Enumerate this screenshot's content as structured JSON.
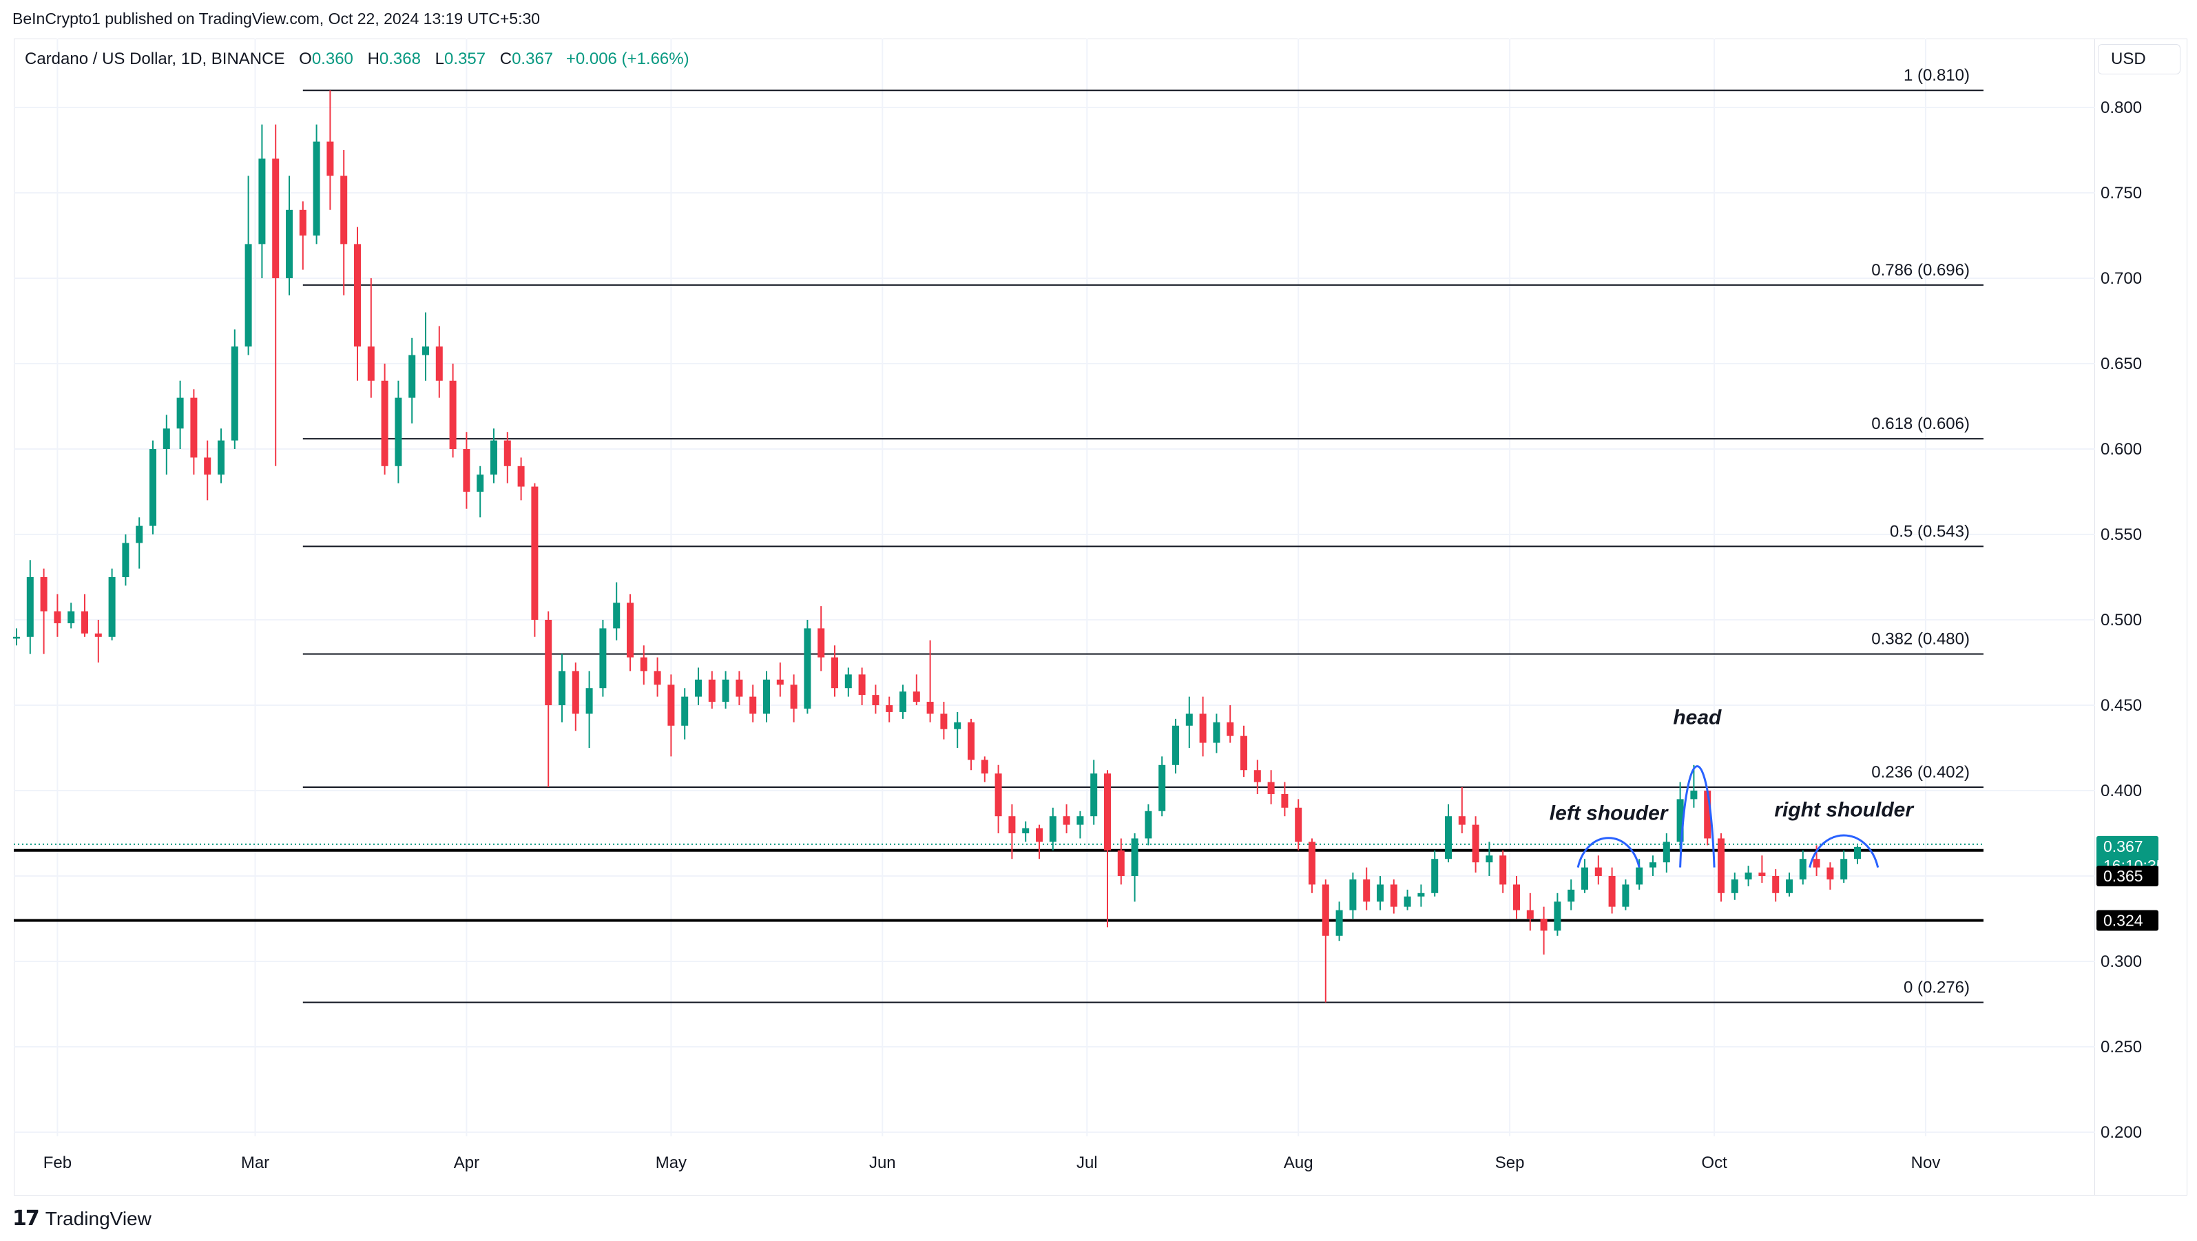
{
  "header": {
    "publish_text": "BeInCrypto1 published on TradingView.com, Oct 22, 2024 13:19 UTC+5:30"
  },
  "legend": {
    "symbol": "Cardano / US Dollar, 1D, BINANCE",
    "o_label": "O",
    "o_value": "0.360",
    "h_label": "H",
    "h_value": "0.368",
    "l_label": "L",
    "l_value": "0.357",
    "c_label": "C",
    "c_value": "0.367",
    "change": "+0.006 (+1.66%)"
  },
  "currency": "USD",
  "footer": {
    "logo": "17",
    "brand": "TradingView"
  },
  "colors": {
    "up": "#089981",
    "down": "#f23645",
    "annotation_curve": "#2962ff",
    "level_line": "#131722"
  },
  "chart_data": {
    "type": "candlestick",
    "title": "Cardano / US Dollar, 1D, BINANCE",
    "x_tick_labels": [
      "Feb",
      "Mar",
      "Apr",
      "May",
      "Jun",
      "Jul",
      "Aug",
      "Sep",
      "Oct",
      "Nov"
    ],
    "x_tick_dates": [
      "2024-02-01",
      "2024-03-01",
      "2024-04-01",
      "2024-05-01",
      "2024-06-01",
      "2024-07-01",
      "2024-08-01",
      "2024-09-01",
      "2024-10-01",
      "2024-11-01"
    ],
    "x_range": [
      "2024-01-26",
      "2024-11-20"
    ],
    "y_ticks": [
      "0.800",
      "0.750",
      "0.700",
      "0.650",
      "0.600",
      "0.550",
      "0.500",
      "0.450",
      "0.400",
      "0.350",
      "0.300",
      "0.250",
      "0.200"
    ],
    "y_range": [
      0.19,
      0.81
    ],
    "grid": true,
    "candles": [
      {
        "d": "2024-01-26",
        "o": 0.489,
        "h": 0.495,
        "l": 0.485,
        "c": 0.49
      },
      {
        "d": "2024-01-28",
        "o": 0.49,
        "h": 0.535,
        "l": 0.48,
        "c": 0.525
      },
      {
        "d": "2024-01-30",
        "o": 0.525,
        "h": 0.53,
        "l": 0.48,
        "c": 0.505
      },
      {
        "d": "2024-02-01",
        "o": 0.505,
        "h": 0.515,
        "l": 0.49,
        "c": 0.498
      },
      {
        "d": "2024-02-03",
        "o": 0.498,
        "h": 0.51,
        "l": 0.495,
        "c": 0.505
      },
      {
        "d": "2024-02-05",
        "o": 0.505,
        "h": 0.515,
        "l": 0.49,
        "c": 0.492
      },
      {
        "d": "2024-02-07",
        "o": 0.492,
        "h": 0.5,
        "l": 0.475,
        "c": 0.49
      },
      {
        "d": "2024-02-09",
        "o": 0.49,
        "h": 0.53,
        "l": 0.488,
        "c": 0.525
      },
      {
        "d": "2024-02-11",
        "o": 0.525,
        "h": 0.55,
        "l": 0.52,
        "c": 0.545
      },
      {
        "d": "2024-02-13",
        "o": 0.545,
        "h": 0.56,
        "l": 0.53,
        "c": 0.555
      },
      {
        "d": "2024-02-15",
        "o": 0.555,
        "h": 0.605,
        "l": 0.55,
        "c": 0.6
      },
      {
        "d": "2024-02-17",
        "o": 0.6,
        "h": 0.62,
        "l": 0.585,
        "c": 0.612
      },
      {
        "d": "2024-02-19",
        "o": 0.612,
        "h": 0.64,
        "l": 0.6,
        "c": 0.63
      },
      {
        "d": "2024-02-21",
        "o": 0.63,
        "h": 0.635,
        "l": 0.585,
        "c": 0.595
      },
      {
        "d": "2024-02-23",
        "o": 0.595,
        "h": 0.605,
        "l": 0.57,
        "c": 0.585
      },
      {
        "d": "2024-02-25",
        "o": 0.585,
        "h": 0.612,
        "l": 0.58,
        "c": 0.605
      },
      {
        "d": "2024-02-27",
        "o": 0.605,
        "h": 0.67,
        "l": 0.6,
        "c": 0.66
      },
      {
        "d": "2024-02-29",
        "o": 0.66,
        "h": 0.76,
        "l": 0.655,
        "c": 0.72
      },
      {
        "d": "2024-03-02",
        "o": 0.72,
        "h": 0.79,
        "l": 0.7,
        "c": 0.77
      },
      {
        "d": "2024-03-04",
        "o": 0.77,
        "h": 0.79,
        "l": 0.59,
        "c": 0.7
      },
      {
        "d": "2024-03-06",
        "o": 0.7,
        "h": 0.76,
        "l": 0.69,
        "c": 0.74
      },
      {
        "d": "2024-03-08",
        "o": 0.74,
        "h": 0.745,
        "l": 0.705,
        "c": 0.725
      },
      {
        "d": "2024-03-10",
        "o": 0.725,
        "h": 0.79,
        "l": 0.72,
        "c": 0.78
      },
      {
        "d": "2024-03-12",
        "o": 0.78,
        "h": 0.81,
        "l": 0.74,
        "c": 0.76
      },
      {
        "d": "2024-03-14",
        "o": 0.76,
        "h": 0.775,
        "l": 0.69,
        "c": 0.72
      },
      {
        "d": "2024-03-16",
        "o": 0.72,
        "h": 0.73,
        "l": 0.64,
        "c": 0.66
      },
      {
        "d": "2024-03-18",
        "o": 0.66,
        "h": 0.7,
        "l": 0.63,
        "c": 0.64
      },
      {
        "d": "2024-03-20",
        "o": 0.64,
        "h": 0.65,
        "l": 0.585,
        "c": 0.59
      },
      {
        "d": "2024-03-22",
        "o": 0.59,
        "h": 0.64,
        "l": 0.58,
        "c": 0.63
      },
      {
        "d": "2024-03-24",
        "o": 0.63,
        "h": 0.665,
        "l": 0.615,
        "c": 0.655
      },
      {
        "d": "2024-03-26",
        "o": 0.655,
        "h": 0.68,
        "l": 0.64,
        "c": 0.66
      },
      {
        "d": "2024-03-28",
        "o": 0.66,
        "h": 0.672,
        "l": 0.63,
        "c": 0.64
      },
      {
        "d": "2024-03-30",
        "o": 0.64,
        "h": 0.65,
        "l": 0.595,
        "c": 0.6
      },
      {
        "d": "2024-04-01",
        "o": 0.6,
        "h": 0.61,
        "l": 0.565,
        "c": 0.575
      },
      {
        "d": "2024-04-03",
        "o": 0.575,
        "h": 0.59,
        "l": 0.56,
        "c": 0.585
      },
      {
        "d": "2024-04-05",
        "o": 0.585,
        "h": 0.612,
        "l": 0.58,
        "c": 0.605
      },
      {
        "d": "2024-04-07",
        "o": 0.605,
        "h": 0.61,
        "l": 0.58,
        "c": 0.59
      },
      {
        "d": "2024-04-09",
        "o": 0.59,
        "h": 0.595,
        "l": 0.57,
        "c": 0.578
      },
      {
        "d": "2024-04-11",
        "o": 0.578,
        "h": 0.58,
        "l": 0.49,
        "c": 0.5
      },
      {
        "d": "2024-04-13",
        "o": 0.5,
        "h": 0.505,
        "l": 0.402,
        "c": 0.45
      },
      {
        "d": "2024-04-15",
        "o": 0.45,
        "h": 0.48,
        "l": 0.44,
        "c": 0.47
      },
      {
        "d": "2024-04-17",
        "o": 0.47,
        "h": 0.475,
        "l": 0.435,
        "c": 0.445
      },
      {
        "d": "2024-04-19",
        "o": 0.445,
        "h": 0.47,
        "l": 0.425,
        "c": 0.46
      },
      {
        "d": "2024-04-21",
        "o": 0.46,
        "h": 0.5,
        "l": 0.455,
        "c": 0.495
      },
      {
        "d": "2024-04-23",
        "o": 0.495,
        "h": 0.522,
        "l": 0.488,
        "c": 0.51
      },
      {
        "d": "2024-04-25",
        "o": 0.51,
        "h": 0.515,
        "l": 0.47,
        "c": 0.478
      },
      {
        "d": "2024-04-27",
        "o": 0.478,
        "h": 0.485,
        "l": 0.462,
        "c": 0.47
      },
      {
        "d": "2024-04-29",
        "o": 0.47,
        "h": 0.478,
        "l": 0.455,
        "c": 0.462
      },
      {
        "d": "2024-05-01",
        "o": 0.462,
        "h": 0.468,
        "l": 0.42,
        "c": 0.438
      },
      {
        "d": "2024-05-03",
        "o": 0.438,
        "h": 0.46,
        "l": 0.43,
        "c": 0.455
      },
      {
        "d": "2024-05-05",
        "o": 0.455,
        "h": 0.472,
        "l": 0.45,
        "c": 0.465
      },
      {
        "d": "2024-05-07",
        "o": 0.465,
        "h": 0.47,
        "l": 0.448,
        "c": 0.452
      },
      {
        "d": "2024-05-09",
        "o": 0.452,
        "h": 0.47,
        "l": 0.448,
        "c": 0.465
      },
      {
        "d": "2024-05-11",
        "o": 0.465,
        "h": 0.47,
        "l": 0.45,
        "c": 0.455
      },
      {
        "d": "2024-05-13",
        "o": 0.455,
        "h": 0.462,
        "l": 0.44,
        "c": 0.445
      },
      {
        "d": "2024-05-15",
        "o": 0.445,
        "h": 0.47,
        "l": 0.44,
        "c": 0.465
      },
      {
        "d": "2024-05-17",
        "o": 0.465,
        "h": 0.475,
        "l": 0.455,
        "c": 0.462
      },
      {
        "d": "2024-05-19",
        "o": 0.462,
        "h": 0.468,
        "l": 0.44,
        "c": 0.448
      },
      {
        "d": "2024-05-21",
        "o": 0.448,
        "h": 0.5,
        "l": 0.445,
        "c": 0.495
      },
      {
        "d": "2024-05-23",
        "o": 0.495,
        "h": 0.508,
        "l": 0.47,
        "c": 0.478
      },
      {
        "d": "2024-05-25",
        "o": 0.478,
        "h": 0.485,
        "l": 0.455,
        "c": 0.46
      },
      {
        "d": "2024-05-27",
        "o": 0.46,
        "h": 0.472,
        "l": 0.455,
        "c": 0.468
      },
      {
        "d": "2024-05-29",
        "o": 0.468,
        "h": 0.472,
        "l": 0.45,
        "c": 0.456
      },
      {
        "d": "2024-05-31",
        "o": 0.456,
        "h": 0.462,
        "l": 0.445,
        "c": 0.45
      },
      {
        "d": "2024-06-02",
        "o": 0.45,
        "h": 0.455,
        "l": 0.44,
        "c": 0.446
      },
      {
        "d": "2024-06-04",
        "o": 0.446,
        "h": 0.462,
        "l": 0.442,
        "c": 0.458
      },
      {
        "d": "2024-06-06",
        "o": 0.458,
        "h": 0.468,
        "l": 0.45,
        "c": 0.452
      },
      {
        "d": "2024-06-08",
        "o": 0.452,
        "h": 0.488,
        "l": 0.44,
        "c": 0.445
      },
      {
        "d": "2024-06-10",
        "o": 0.445,
        "h": 0.452,
        "l": 0.43,
        "c": 0.436
      },
      {
        "d": "2024-06-12",
        "o": 0.436,
        "h": 0.446,
        "l": 0.425,
        "c": 0.44
      },
      {
        "d": "2024-06-14",
        "o": 0.44,
        "h": 0.442,
        "l": 0.412,
        "c": 0.418
      },
      {
        "d": "2024-06-16",
        "o": 0.418,
        "h": 0.42,
        "l": 0.405,
        "c": 0.41
      },
      {
        "d": "2024-06-18",
        "o": 0.41,
        "h": 0.415,
        "l": 0.375,
        "c": 0.385
      },
      {
        "d": "2024-06-20",
        "o": 0.385,
        "h": 0.392,
        "l": 0.36,
        "c": 0.375
      },
      {
        "d": "2024-06-22",
        "o": 0.375,
        "h": 0.382,
        "l": 0.37,
        "c": 0.378
      },
      {
        "d": "2024-06-24",
        "o": 0.378,
        "h": 0.38,
        "l": 0.36,
        "c": 0.37
      },
      {
        "d": "2024-06-26",
        "o": 0.37,
        "h": 0.39,
        "l": 0.365,
        "c": 0.385
      },
      {
        "d": "2024-06-28",
        "o": 0.385,
        "h": 0.392,
        "l": 0.375,
        "c": 0.38
      },
      {
        "d": "2024-06-30",
        "o": 0.38,
        "h": 0.388,
        "l": 0.372,
        "c": 0.385
      },
      {
        "d": "2024-07-02",
        "o": 0.385,
        "h": 0.418,
        "l": 0.38,
        "c": 0.41
      },
      {
        "d": "2024-07-04",
        "o": 0.41,
        "h": 0.412,
        "l": 0.32,
        "c": 0.365
      },
      {
        "d": "2024-07-06",
        "o": 0.365,
        "h": 0.372,
        "l": 0.345,
        "c": 0.35
      },
      {
        "d": "2024-07-08",
        "o": 0.35,
        "h": 0.375,
        "l": 0.335,
        "c": 0.372
      },
      {
        "d": "2024-07-10",
        "o": 0.372,
        "h": 0.392,
        "l": 0.368,
        "c": 0.388
      },
      {
        "d": "2024-07-12",
        "o": 0.388,
        "h": 0.42,
        "l": 0.385,
        "c": 0.415
      },
      {
        "d": "2024-07-14",
        "o": 0.415,
        "h": 0.442,
        "l": 0.41,
        "c": 0.438
      },
      {
        "d": "2024-07-16",
        "o": 0.438,
        "h": 0.455,
        "l": 0.425,
        "c": 0.445
      },
      {
        "d": "2024-07-18",
        "o": 0.445,
        "h": 0.455,
        "l": 0.42,
        "c": 0.428
      },
      {
        "d": "2024-07-20",
        "o": 0.428,
        "h": 0.445,
        "l": 0.422,
        "c": 0.44
      },
      {
        "d": "2024-07-22",
        "o": 0.44,
        "h": 0.45,
        "l": 0.428,
        "c": 0.432
      },
      {
        "d": "2024-07-24",
        "o": 0.432,
        "h": 0.438,
        "l": 0.408,
        "c": 0.412
      },
      {
        "d": "2024-07-26",
        "o": 0.412,
        "h": 0.418,
        "l": 0.398,
        "c": 0.405
      },
      {
        "d": "2024-07-28",
        "o": 0.405,
        "h": 0.412,
        "l": 0.392,
        "c": 0.398
      },
      {
        "d": "2024-07-30",
        "o": 0.398,
        "h": 0.405,
        "l": 0.385,
        "c": 0.39
      },
      {
        "d": "2024-08-01",
        "o": 0.39,
        "h": 0.395,
        "l": 0.365,
        "c": 0.37
      },
      {
        "d": "2024-08-03",
        "o": 0.37,
        "h": 0.372,
        "l": 0.34,
        "c": 0.345
      },
      {
        "d": "2024-08-05",
        "o": 0.345,
        "h": 0.348,
        "l": 0.276,
        "c": 0.315
      },
      {
        "d": "2024-08-07",
        "o": 0.315,
        "h": 0.335,
        "l": 0.312,
        "c": 0.33
      },
      {
        "d": "2024-08-09",
        "o": 0.33,
        "h": 0.352,
        "l": 0.325,
        "c": 0.348
      },
      {
        "d": "2024-08-11",
        "o": 0.348,
        "h": 0.355,
        "l": 0.33,
        "c": 0.335
      },
      {
        "d": "2024-08-13",
        "o": 0.335,
        "h": 0.35,
        "l": 0.33,
        "c": 0.345
      },
      {
        "d": "2024-08-15",
        "o": 0.345,
        "h": 0.348,
        "l": 0.328,
        "c": 0.332
      },
      {
        "d": "2024-08-17",
        "o": 0.332,
        "h": 0.342,
        "l": 0.33,
        "c": 0.338
      },
      {
        "d": "2024-08-19",
        "o": 0.338,
        "h": 0.345,
        "l": 0.332,
        "c": 0.34
      },
      {
        "d": "2024-08-21",
        "o": 0.34,
        "h": 0.365,
        "l": 0.338,
        "c": 0.36
      },
      {
        "d": "2024-08-23",
        "o": 0.36,
        "h": 0.392,
        "l": 0.358,
        "c": 0.385
      },
      {
        "d": "2024-08-25",
        "o": 0.385,
        "h": 0.402,
        "l": 0.375,
        "c": 0.38
      },
      {
        "d": "2024-08-27",
        "o": 0.38,
        "h": 0.385,
        "l": 0.352,
        "c": 0.358
      },
      {
        "d": "2024-08-29",
        "o": 0.358,
        "h": 0.37,
        "l": 0.35,
        "c": 0.362
      },
      {
        "d": "2024-08-31",
        "o": 0.362,
        "h": 0.365,
        "l": 0.34,
        "c": 0.345
      },
      {
        "d": "2024-09-02",
        "o": 0.345,
        "h": 0.35,
        "l": 0.325,
        "c": 0.33
      },
      {
        "d": "2024-09-04",
        "o": 0.33,
        "h": 0.34,
        "l": 0.318,
        "c": 0.325
      },
      {
        "d": "2024-09-06",
        "o": 0.325,
        "h": 0.332,
        "l": 0.304,
        "c": 0.318
      },
      {
        "d": "2024-09-08",
        "o": 0.318,
        "h": 0.34,
        "l": 0.315,
        "c": 0.335
      },
      {
        "d": "2024-09-10",
        "o": 0.335,
        "h": 0.348,
        "l": 0.33,
        "c": 0.342
      },
      {
        "d": "2024-09-12",
        "o": 0.342,
        "h": 0.36,
        "l": 0.34,
        "c": 0.355
      },
      {
        "d": "2024-09-14",
        "o": 0.355,
        "h": 0.362,
        "l": 0.345,
        "c": 0.35
      },
      {
        "d": "2024-09-16",
        "o": 0.35,
        "h": 0.355,
        "l": 0.328,
        "c": 0.332
      },
      {
        "d": "2024-09-18",
        "o": 0.332,
        "h": 0.348,
        "l": 0.33,
        "c": 0.345
      },
      {
        "d": "2024-09-20",
        "o": 0.345,
        "h": 0.36,
        "l": 0.342,
        "c": 0.355
      },
      {
        "d": "2024-09-22",
        "o": 0.355,
        "h": 0.362,
        "l": 0.35,
        "c": 0.358
      },
      {
        "d": "2024-09-24",
        "o": 0.358,
        "h": 0.375,
        "l": 0.352,
        "c": 0.37
      },
      {
        "d": "2024-09-26",
        "o": 0.37,
        "h": 0.405,
        "l": 0.365,
        "c": 0.395
      },
      {
        "d": "2024-09-28",
        "o": 0.395,
        "h": 0.415,
        "l": 0.39,
        "c": 0.4
      },
      {
        "d": "2024-09-30",
        "o": 0.4,
        "h": 0.402,
        "l": 0.368,
        "c": 0.372
      },
      {
        "d": "2024-10-02",
        "o": 0.372,
        "h": 0.375,
        "l": 0.335,
        "c": 0.34
      },
      {
        "d": "2024-10-04",
        "o": 0.34,
        "h": 0.352,
        "l": 0.336,
        "c": 0.348
      },
      {
        "d": "2024-10-06",
        "o": 0.348,
        "h": 0.356,
        "l": 0.344,
        "c": 0.352
      },
      {
        "d": "2024-10-08",
        "o": 0.352,
        "h": 0.362,
        "l": 0.346,
        "c": 0.35
      },
      {
        "d": "2024-10-10",
        "o": 0.35,
        "h": 0.354,
        "l": 0.335,
        "c": 0.34
      },
      {
        "d": "2024-10-12",
        "o": 0.34,
        "h": 0.352,
        "l": 0.338,
        "c": 0.348
      },
      {
        "d": "2024-10-14",
        "o": 0.348,
        "h": 0.365,
        "l": 0.345,
        "c": 0.36
      },
      {
        "d": "2024-10-16",
        "o": 0.36,
        "h": 0.368,
        "l": 0.35,
        "c": 0.355
      },
      {
        "d": "2024-10-18",
        "o": 0.355,
        "h": 0.358,
        "l": 0.342,
        "c": 0.348
      },
      {
        "d": "2024-10-20",
        "o": 0.348,
        "h": 0.365,
        "l": 0.346,
        "c": 0.36
      },
      {
        "d": "2024-10-22",
        "o": 0.36,
        "h": 0.368,
        "l": 0.357,
        "c": 0.367
      }
    ],
    "fib_levels": [
      {
        "label": "1 (0.810)",
        "value": 0.81
      },
      {
        "label": "0.786 (0.696)",
        "value": 0.696
      },
      {
        "label": "0.618 (0.606)",
        "value": 0.606
      },
      {
        "label": "0.5 (0.543)",
        "value": 0.543
      },
      {
        "label": "0.382 (0.480)",
        "value": 0.48
      },
      {
        "label": "0.236 (0.402)",
        "value": 0.402
      },
      {
        "label": "0 (0.276)",
        "value": 0.276
      }
    ],
    "fib_start_date": "2024-03-08",
    "horizontal_levels": [
      {
        "label": "0.365",
        "value": 0.365
      },
      {
        "label": "0.324",
        "value": 0.324
      }
    ],
    "last_price": {
      "value": 0.367,
      "label": "0.367",
      "countdown": "16:10:35"
    },
    "pattern_annotations": [
      {
        "label": "left shouder",
        "start_date": "2024-09-11",
        "end_date": "2024-09-20",
        "peak": 0.374
      },
      {
        "label": "head",
        "start_date": "2024-09-26",
        "end_date": "2024-10-01",
        "peak": 0.43
      },
      {
        "label": "right shoulder",
        "start_date": "2024-10-15",
        "end_date": "2024-10-25",
        "peak": 0.376
      }
    ]
  }
}
